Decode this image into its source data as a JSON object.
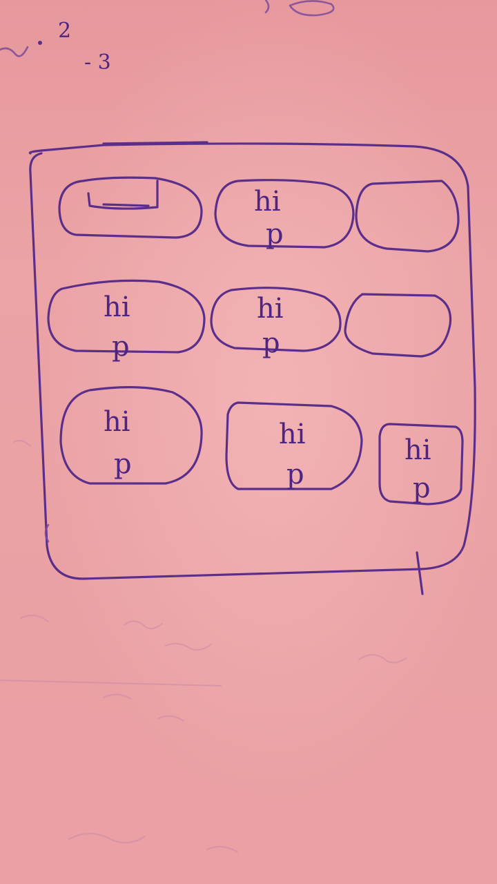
{
  "sketch": {
    "top_scribble": {
      "mark_a": "2",
      "mark_b": "- 3"
    },
    "tiles": [
      {
        "line1": "",
        "line2": "",
        "header_bar": true
      },
      {
        "line1": "hi",
        "line2": "p",
        "header_bar": false
      },
      {
        "line1": "",
        "line2": "",
        "header_bar": false
      },
      {
        "line1": "hi",
        "line2": "p",
        "header_bar": false
      },
      {
        "line1": "hi",
        "line2": "p",
        "header_bar": false
      },
      {
        "line1": "",
        "line2": "",
        "header_bar": false
      },
      {
        "line1": "hi",
        "line2": "p",
        "header_bar": false
      },
      {
        "line1": "hi",
        "line2": "p",
        "header_bar": false
      },
      {
        "line1": "hi",
        "line2": "p",
        "header_bar": false
      }
    ],
    "colors": {
      "paper": "#eba3a6",
      "ink": "#5b2e8a"
    }
  }
}
